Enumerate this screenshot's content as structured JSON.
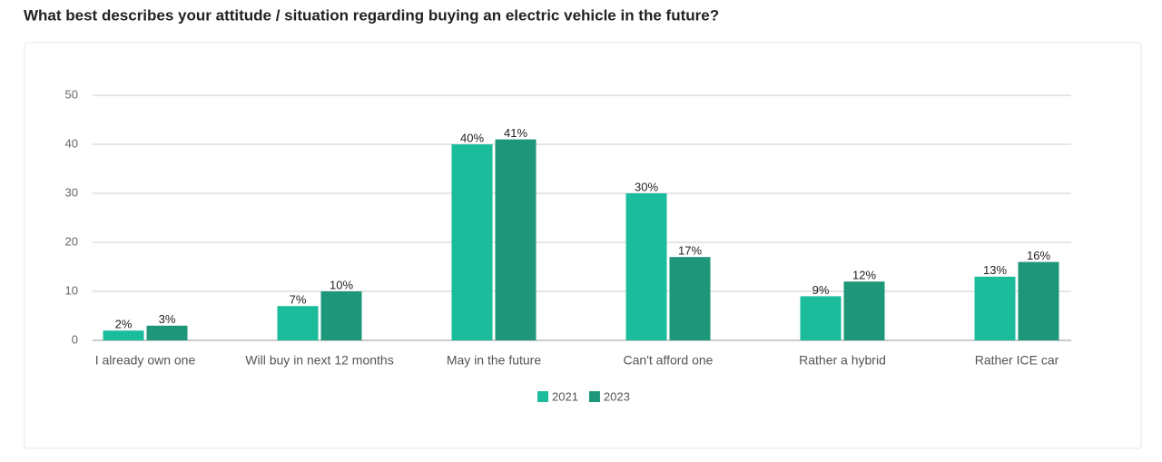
{
  "chart_data": {
    "type": "bar",
    "title": "What best describes your attitude / situation regarding buying an electric vehicle in the future?",
    "categories": [
      "I already own one",
      "Will buy in next 12 months",
      "May in the future",
      "Can't afford one",
      "Rather a hybrid",
      "Rather ICE car"
    ],
    "series": [
      {
        "name": "2021",
        "color": "#1abc9c",
        "values": [
          2,
          7,
          40,
          30,
          9,
          13
        ],
        "value_labels": [
          "2%",
          "7%",
          "40%",
          "30%",
          "9%",
          "13%"
        ]
      },
      {
        "name": "2023",
        "color": "#1e967a",
        "values": [
          3,
          10,
          41,
          17,
          12,
          16
        ],
        "value_labels": [
          "3%",
          "10%",
          "41%",
          "17%",
          "12%",
          "16%"
        ]
      }
    ],
    "ylim": [
      0,
      50
    ],
    "yticks": [
      0,
      10,
      20,
      30,
      40,
      50
    ],
    "grid": true,
    "legend": "bottom"
  }
}
